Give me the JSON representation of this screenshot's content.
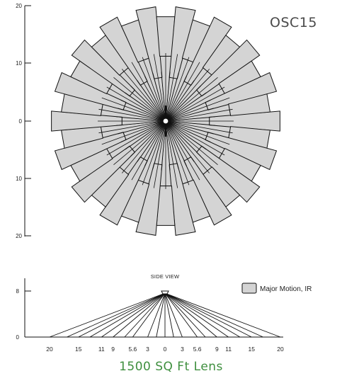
{
  "model_label": "OSC15",
  "top_view": {
    "y_ticks": [
      "20",
      "10",
      "0",
      "10",
      "20"
    ],
    "zone_count": 36,
    "fill_color": "#d4d4d4",
    "outline_color": "#111111"
  },
  "side_view": {
    "title": "SIDE VIEW",
    "y_ticks": [
      "8",
      "0"
    ],
    "x_ticks": [
      "20",
      "15",
      "11",
      "9",
      "5.6",
      "3",
      "0",
      "3",
      "5.6",
      "9",
      "11",
      "15",
      "20"
    ],
    "ray_endpoints": [
      -20,
      -17,
      -15,
      -13,
      -11,
      -9,
      -7,
      -5.6,
      -3,
      -1.5,
      0,
      1.5,
      3,
      5.6,
      7,
      9,
      11,
      13,
      15,
      17,
      20
    ]
  },
  "legend": {
    "label": "Major Motion, IR",
    "swatch_color": "#d4d4d4"
  },
  "caption": {
    "text": "1500 SQ Ft Lens",
    "color": "#3f8f3f"
  }
}
